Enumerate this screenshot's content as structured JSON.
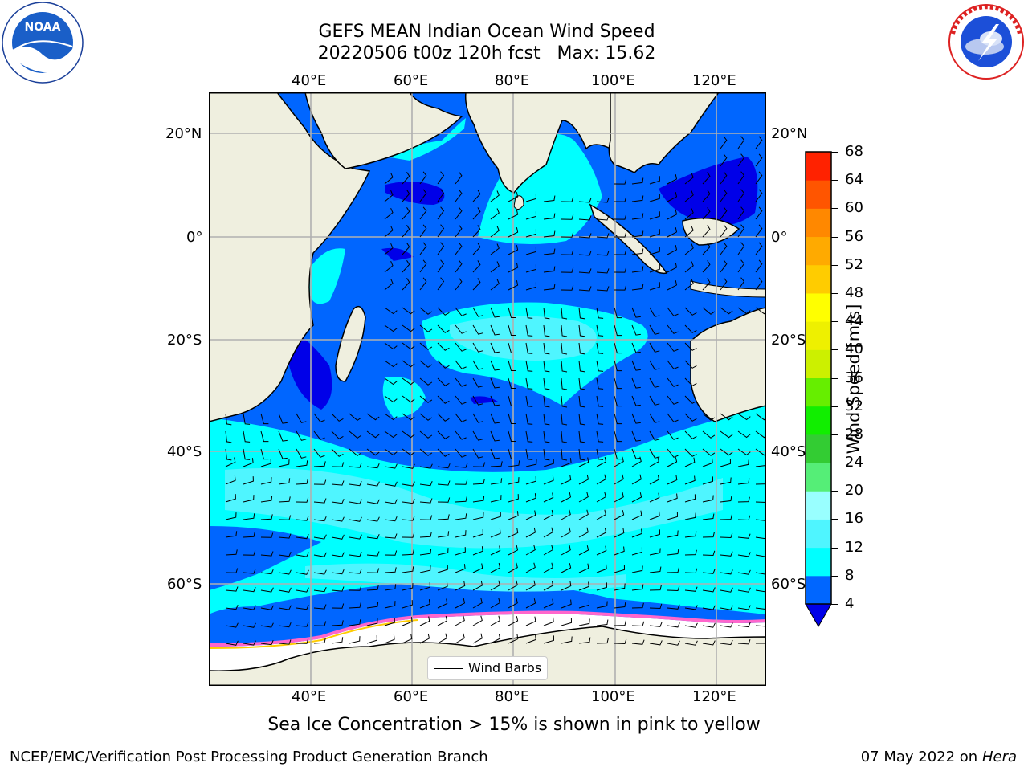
{
  "title": {
    "line1": "GEFS MEAN Indian Ocean Wind Speed",
    "line2": "20220506 t00z 120h fcst   Max: 15.62"
  },
  "map": {
    "lon_range": [
      20,
      130
    ],
    "lat_range": [
      -74,
      27
    ],
    "top_lon_labels": [
      "40°E",
      "60°E",
      "80°E",
      "100°E",
      "120°E"
    ],
    "bottom_lon_labels": [
      "40°E",
      "60°E",
      "80°E",
      "100°E",
      "120°E"
    ],
    "left_lat_labels": [
      "20°N",
      "0°",
      "20°S",
      "40°S",
      "60°S"
    ],
    "right_lat_labels": [
      "20°N",
      "0°",
      "20°S",
      "40°S",
      "60°S"
    ],
    "land_color": "#efefdf",
    "ocean_colors": {
      "4-8": "#0066ff",
      "below-4": "#0000e8",
      "8-12": "#00ffff",
      "12-16": "#4ff5ff",
      "16-20": "#99ffff"
    }
  },
  "colorbar": {
    "label": "Wind Speed [m/s]",
    "ticks": [
      "4",
      "8",
      "12",
      "16",
      "20",
      "24",
      "28",
      "32",
      "36",
      "40",
      "44",
      "48",
      "52",
      "56",
      "60",
      "64",
      "68"
    ],
    "colors": [
      "#0066ff",
      "#00ffff",
      "#4ff5ff",
      "#99ffff",
      "#55ee77",
      "#33cc33",
      "#11ee00",
      "#66ee00",
      "#ccf000",
      "#eef000",
      "#ffff00",
      "#ffcc00",
      "#ffaa00",
      "#ff8800",
      "#ff5500",
      "#ff2200"
    ],
    "under_color": "#0000e8"
  },
  "legend": {
    "label": "Wind Barbs"
  },
  "subtitle": "Sea Ice Concentration > 15% is shown in pink to yellow",
  "footer": {
    "left": "NCEP/EMC/Verification Post Processing Product Generation Branch",
    "right_date": "07 May 2022 on",
    "right_machine": "Hera"
  },
  "logos": {
    "noaa": "NOAA",
    "nws": "NATIONAL WEATHER SERVICE"
  }
}
